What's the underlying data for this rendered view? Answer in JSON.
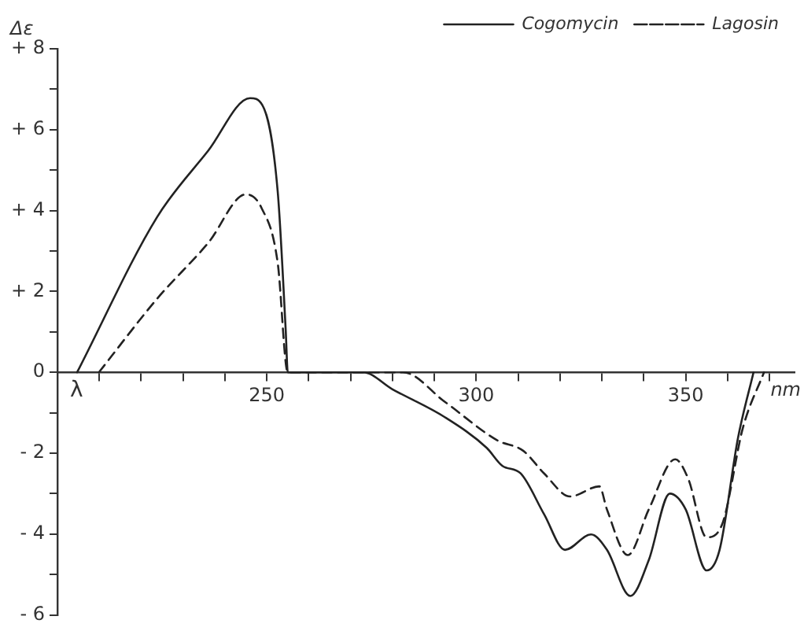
{
  "chart_data": {
    "type": "line",
    "xlabel": "nm",
    "ylabel": "Δε",
    "annotations": [
      "λ"
    ],
    "series": [
      {
        "name": "Cogomycin",
        "color": "#222222",
        "line_style": "solid",
        "x": [
          204.7,
          223.8,
          236,
          246,
          248.9,
          252.6,
          254.5,
          255,
          273,
          280,
          292.5,
          302.5,
          306.2,
          310.6,
          316.2,
          321.2,
          327.4,
          331.2,
          336.8,
          341.2,
          346.2,
          350,
          355,
          358.1,
          362.5,
          366.2
        ],
        "values": [
          0,
          3.84,
          5.48,
          6.78,
          6.61,
          4.46,
          1.05,
          0,
          0,
          -0.42,
          -1.11,
          -1.87,
          -2.31,
          -2.5,
          -3.51,
          -4.39,
          -4.01,
          -4.39,
          -5.53,
          -4.64,
          -3.0,
          -3.39,
          -4.9,
          -4.39,
          -1.62,
          0
        ]
      },
      {
        "name": "Lagosin",
        "color": "#222222",
        "line_style": "dashed",
        "x": [
          209.9,
          223.8,
          236,
          245,
          248.7,
          252.6,
          255,
          282.5,
          292.5,
          305,
          311.2,
          316.2,
          322.4,
          329.4,
          331.2,
          336.2,
          341.2,
          347.5,
          350.6,
          355,
          358.7,
          363.7,
          368.7
        ],
        "values": [
          0,
          1.82,
          3.2,
          4.4,
          4.07,
          2.7,
          0,
          0,
          -0.73,
          -1.68,
          -1.94,
          -2.5,
          -3.07,
          -2.82,
          -3.39,
          -4.52,
          -3.39,
          -2.15,
          -2.63,
          -4.08,
          -3.76,
          -1.36,
          0
        ]
      }
    ],
    "xlim": [
      200,
      376
    ],
    "xticks": [
      {
        "value": 210,
        "label": null
      },
      {
        "value": 220,
        "label": null
      },
      {
        "value": 230,
        "label": null
      },
      {
        "value": 240,
        "label": null
      },
      250,
      {
        "value": 260,
        "label": null
      },
      {
        "value": 270,
        "label": null
      },
      {
        "value": 280,
        "label": null
      },
      {
        "value": 290,
        "label": null
      },
      300,
      {
        "value": 310,
        "label": null
      },
      {
        "value": 320,
        "label": null
      },
      {
        "value": 330,
        "label": null
      },
      {
        "value": 340,
        "label": null
      },
      350,
      {
        "value": 360,
        "label": null
      },
      {
        "value": 370,
        "label": null
      }
    ],
    "ylim": [
      -6,
      8
    ],
    "yticks": [
      {
        "value": -6,
        "label": "- 6"
      },
      {
        "value": -5,
        "label": null
      },
      {
        "value": -4,
        "label": "- 4"
      },
      {
        "value": -3,
        "label": null
      },
      {
        "value": -2,
        "label": "- 2"
      },
      {
        "value": -1,
        "label": null
      },
      0,
      {
        "value": 1,
        "label": null
      },
      {
        "value": 2,
        "label": "+ 2"
      },
      {
        "value": 3,
        "label": null
      },
      {
        "value": 4,
        "label": "+ 4"
      },
      {
        "value": 5,
        "label": null
      },
      {
        "value": 6,
        "label": "+ 6"
      },
      {
        "value": 7,
        "label": null
      },
      {
        "value": 8,
        "label": "+ 8"
      }
    ],
    "grid": false,
    "legend": "top right",
    "marker": "none"
  }
}
